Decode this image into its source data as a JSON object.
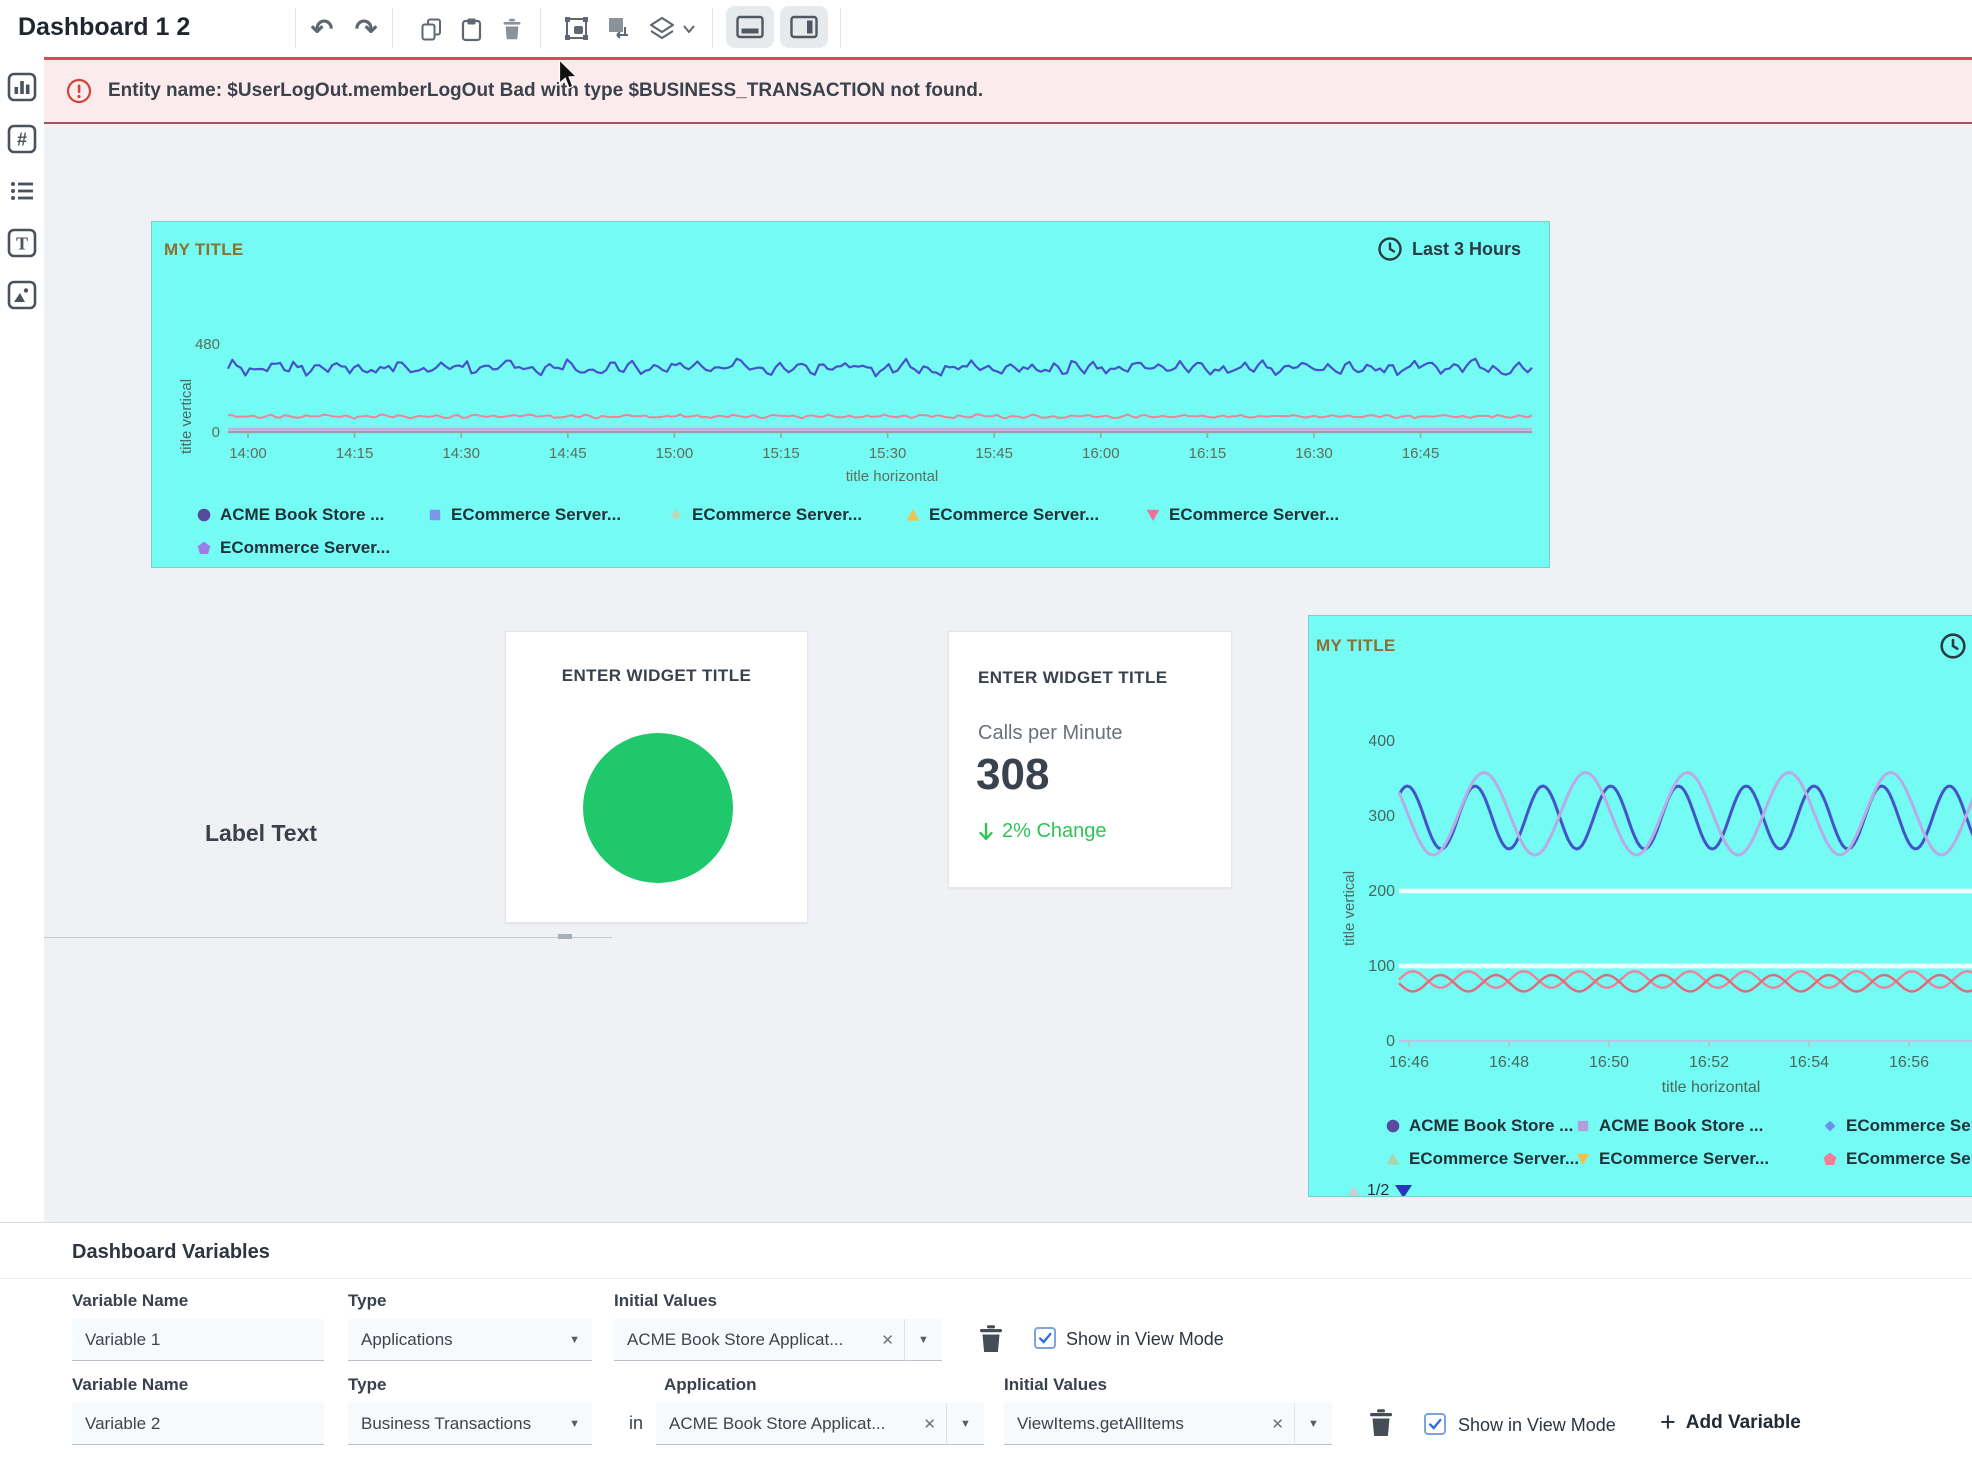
{
  "window_title": "Dashboard 1 2",
  "toolbar": {
    "icons": [
      "undo",
      "redo",
      "copy",
      "paste",
      "delete",
      "bring-to-front",
      "send-to-back",
      "layers",
      "layers-caret",
      "toggle-bottom-panel",
      "toggle-right-panel"
    ]
  },
  "sidebar": {
    "icons": [
      "chart-widget",
      "numeric-widget",
      "list-widget",
      "text-widget",
      "image-widget"
    ]
  },
  "error_banner": {
    "text": "Entity name: $UserLogOut.memberLogOut Bad with type $BUSINESS_TRANSACTION not found."
  },
  "widget_a": {
    "title": "MY TITLE",
    "time_range": "Last 3 Hours"
  },
  "label_widget": {
    "text": "Label Text"
  },
  "pie_widget": {
    "title": "ENTER WIDGET TITLE",
    "circle_color": "#1fc96b"
  },
  "metric_widget": {
    "title": "ENTER WIDGET TITLE",
    "label": "Calls per Minute",
    "value": "308",
    "change": "2% Change",
    "direction": "down"
  },
  "widget_b": {
    "title": "MY TITLE",
    "pagination": "1/2"
  },
  "chart_data": [
    {
      "id": "chart-a",
      "type": "line",
      "title": "MY TITLE",
      "time_range": "Last 3 Hours",
      "xlabel": "title horizontal",
      "ylabel": "title vertical",
      "x_ticks": [
        "14:00",
        "14:15",
        "14:30",
        "14:45",
        "15:00",
        "15:15",
        "15:30",
        "15:45",
        "16:00",
        "16:15",
        "16:30",
        "16:45"
      ],
      "y_ticks": [
        "480",
        "0"
      ],
      "ylim": [
        0,
        480
      ],
      "legend_position": "bottom",
      "grid": false,
      "series": [
        {
          "name": "ACME Book Store ...",
          "marker": "circle",
          "marker_color": "#5a4a9e",
          "line_color": "#4553c9",
          "line_width": 2.2,
          "wave": "noisy",
          "mean": 350,
          "amplitude": 45,
          "cycles": 62
        },
        {
          "name": "ECommerce Server...",
          "marker": "square",
          "marker_color": "#7d96ea",
          "line_color": "#e8879c",
          "line_width": 2,
          "wave": "noisy",
          "mean": 85,
          "amplitude": 11,
          "cycles": 70
        },
        {
          "name": "ECommerce Server...",
          "marker": "diamond",
          "marker_color": "#bcd9b4",
          "line_color": "#8fd0c8",
          "line_width": 2,
          "wave": "flat",
          "mean": 12,
          "amplitude": 0
        },
        {
          "name": "ECommerce Server...",
          "marker": "triangle-up",
          "marker_color": "#f2c14e",
          "line_color": "#cfc6ee",
          "line_width": 2,
          "wave": "flat",
          "mean": 6,
          "amplitude": 0
        },
        {
          "name": "ECommerce Server...",
          "marker": "triangle-down",
          "marker_color": "#f2719c",
          "line_color": "#e0b8c4",
          "line_width": 2,
          "wave": "flat",
          "mean": 2,
          "amplitude": 0
        },
        {
          "name": "ECommerce Server...",
          "marker": "pentagon",
          "marker_color": "#9c7ee8",
          "line_color": "#b9aee8",
          "line_width": 2,
          "wave": "flat",
          "mean": 18,
          "amplitude": 0
        }
      ]
    },
    {
      "id": "chart-b",
      "type": "line",
      "title": "MY TITLE",
      "xlabel": "title horizontal",
      "ylabel": "title vertical",
      "x_ticks": [
        "16:46",
        "16:48",
        "16:50",
        "16:52",
        "16:54",
        "16:56"
      ],
      "y_ticks": [
        "400",
        "300",
        "200",
        "100",
        "0"
      ],
      "ylim": [
        0,
        450
      ],
      "legend_position": "bottom",
      "pagination": "1/2",
      "grid": true,
      "series": [
        {
          "name": "ACME Book Store ...",
          "marker": "circle",
          "marker_color": "#5a4a9e",
          "line_color": "#4553c9",
          "line_width": 3,
          "wave": "sine",
          "mean": 298,
          "amplitude": 42,
          "cycles": 9,
          "phase": 0.8
        },
        {
          "name": "ACME Book Store ...",
          "marker": "square",
          "marker_color": "#b39ddb",
          "line_color": "#b9abe4",
          "line_width": 3,
          "wave": "sine",
          "mean": 303,
          "amplitude": 55,
          "cycles": 6,
          "phase": 2.6
        },
        {
          "name": "ECommerce Server...",
          "marker": "diamond",
          "marker_color": "#6d8eec",
          "line_color": "#ebfffd",
          "line_width": 4.5,
          "wave": "flat",
          "mean": 200,
          "amplitude": 0
        },
        {
          "name": "ECommerce Server...",
          "marker": "triangle-up",
          "marker_color": "#a9d4ae",
          "line_color": "#ebfffd",
          "line_width": 4.5,
          "wave": "flat",
          "mean": 100,
          "amplitude": 0
        },
        {
          "name": "ECommerce Server...",
          "marker": "triangle-down",
          "marker_color": "#f5c04a",
          "line_color": "#ee8298",
          "line_width": 2.4,
          "wave": "sine",
          "mean": 82,
          "amplitude": 11,
          "cycles": 11,
          "phase": 0
        },
        {
          "name": "ECommerce Server...",
          "marker": "pentagon",
          "marker_color": "#ef7f95",
          "line_color": "#e06a7a",
          "line_width": 2.4,
          "wave": "sine",
          "mean": 77,
          "amplitude": 11,
          "cycles": 11,
          "phase": 3.14
        }
      ]
    }
  ],
  "variables_panel": {
    "heading": "Dashboard Variables",
    "rows": [
      {
        "name_label": "Variable Name",
        "name": "Variable 1",
        "type_label": "Type",
        "type": "Applications",
        "initial_label": "Initial Values",
        "initial": "ACME Book Store Applicat...",
        "show_label": "Show in View Mode",
        "checked": true
      },
      {
        "name_label": "Variable Name",
        "name": "Variable 2",
        "type_label": "Type",
        "type": "Business Transactions",
        "in_label": "in",
        "app_label": "Application",
        "app": "ACME Book Store Applicat...",
        "initial_label": "Initial Values",
        "initial": "ViewItems.getAllItems",
        "show_label": "Show in View Mode",
        "checked": true
      }
    ],
    "add_label": "Add Variable"
  }
}
